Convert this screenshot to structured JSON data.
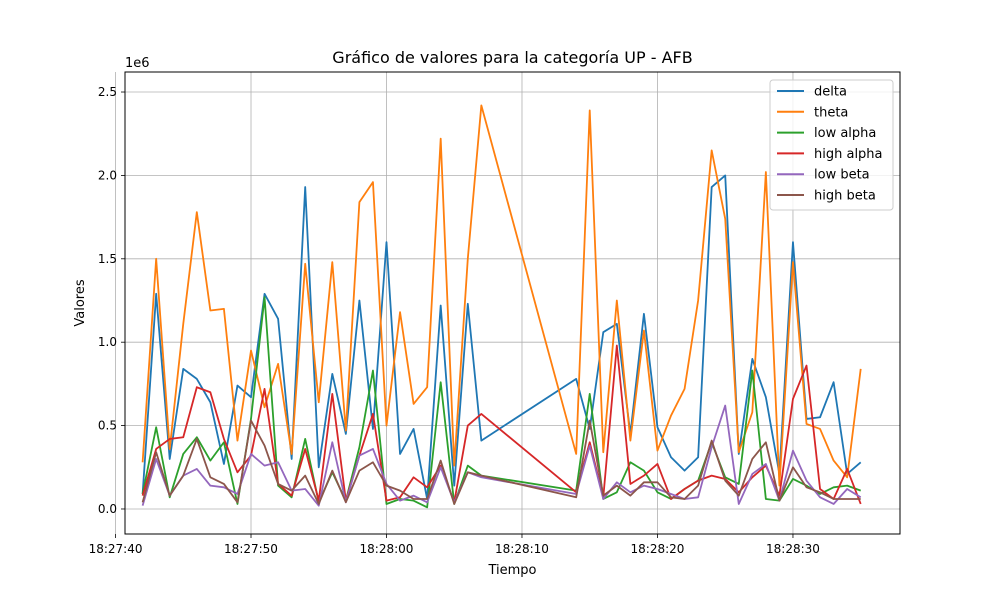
{
  "chart_data": {
    "type": "line",
    "title": "Gráfico de valores para la categoría UP - AFB",
    "xlabel": "Tiempo",
    "ylabel": "Valores",
    "y_offset_label": "1e6",
    "y_scale": 1000000,
    "grid": true,
    "legend_position": "top-right",
    "xlim": [
      "18:27:40.7",
      "18:28:37.9"
    ],
    "ylim": [
      -150000,
      2620000
    ],
    "x_ticks": [
      {
        "t": "18:27:40",
        "label": "18:27:40"
      },
      {
        "t": "18:27:50",
        "label": "18:27:50"
      },
      {
        "t": "18:28:00",
        "label": "18:28:00"
      },
      {
        "t": "18:28:10",
        "label": "18:28:10"
      },
      {
        "t": "18:28:20",
        "label": "18:28:20"
      },
      {
        "t": "18:28:30",
        "label": "18:28:30"
      }
    ],
    "y_ticks": [
      {
        "v": 0,
        "label": "0.0"
      },
      {
        "v": 500000,
        "label": "0.5"
      },
      {
        "v": 1000000,
        "label": "1.0"
      },
      {
        "v": 1500000,
        "label": "1.5"
      },
      {
        "v": 2000000,
        "label": "2.0"
      },
      {
        "v": 2500000,
        "label": "2.5"
      }
    ],
    "x": [
      "18:27:42",
      "18:27:43",
      "18:27:44",
      "18:27:45",
      "18:27:46",
      "18:27:47",
      "18:27:48",
      "18:27:49",
      "18:27:50",
      "18:27:51",
      "18:27:52",
      "18:27:53",
      "18:27:54",
      "18:27:55",
      "18:27:56",
      "18:27:57",
      "18:27:58",
      "18:27:59",
      "18:28:00",
      "18:28:01",
      "18:28:02",
      "18:28:03",
      "18:28:04",
      "18:28:05",
      "18:28:06",
      "18:28:07",
      "18:28:14",
      "18:28:15",
      "18:28:16",
      "18:28:17",
      "18:28:18",
      "18:28:19",
      "18:28:20",
      "18:28:21",
      "18:28:22",
      "18:28:23",
      "18:28:24",
      "18:28:25",
      "18:28:26",
      "18:28:27",
      "18:28:28",
      "18:28:29",
      "18:28:30",
      "18:28:31",
      "18:28:32",
      "18:28:33",
      "18:28:34",
      "18:28:35"
    ],
    "series": [
      {
        "name": "delta",
        "color": "#1f77b4",
        "values": [
          90000,
          1290000,
          300000,
          840000,
          780000,
          640000,
          270000,
          740000,
          670000,
          1290000,
          1140000,
          300000,
          1930000,
          250000,
          810000,
          450000,
          1250000,
          480000,
          1600000,
          330000,
          480000,
          60000,
          1220000,
          140000,
          1230000,
          410000,
          780000,
          480000,
          1060000,
          1110000,
          450000,
          1170000,
          490000,
          310000,
          230000,
          310000,
          1930000,
          2000000,
          330000,
          900000,
          670000,
          210000,
          1600000,
          540000,
          550000,
          760000,
          210000,
          280000
        ]
      },
      {
        "name": "theta",
        "color": "#ff7f0e",
        "values": [
          280000,
          1500000,
          360000,
          1110000,
          1780000,
          1190000,
          1200000,
          410000,
          950000,
          610000,
          870000,
          330000,
          1470000,
          640000,
          1480000,
          470000,
          1840000,
          1960000,
          500000,
          1180000,
          630000,
          730000,
          2220000,
          260000,
          1500000,
          2420000,
          330000,
          2390000,
          340000,
          1250000,
          410000,
          1070000,
          350000,
          560000,
          720000,
          1250000,
          2150000,
          1740000,
          340000,
          580000,
          2020000,
          140000,
          1480000,
          510000,
          480000,
          290000,
          190000,
          840000
        ]
      },
      {
        "name": "low alpha",
        "color": "#2ca02c",
        "values": [
          90000,
          490000,
          70000,
          330000,
          430000,
          290000,
          400000,
          30000,
          540000,
          1270000,
          140000,
          70000,
          420000,
          40000,
          220000,
          50000,
          370000,
          830000,
          30000,
          60000,
          50000,
          10000,
          760000,
          30000,
          260000,
          200000,
          110000,
          690000,
          60000,
          100000,
          280000,
          230000,
          100000,
          60000,
          120000,
          170000,
          400000,
          190000,
          150000,
          830000,
          60000,
          50000,
          180000,
          140000,
          90000,
          130000,
          140000,
          110000
        ]
      },
      {
        "name": "high alpha",
        "color": "#d62728",
        "values": [
          80000,
          360000,
          420000,
          430000,
          730000,
          700000,
          420000,
          220000,
          320000,
          720000,
          150000,
          80000,
          360000,
          50000,
          690000,
          50000,
          320000,
          570000,
          50000,
          70000,
          190000,
          130000,
          260000,
          40000,
          500000,
          570000,
          100000,
          400000,
          70000,
          980000,
          150000,
          200000,
          270000,
          60000,
          120000,
          170000,
          200000,
          180000,
          100000,
          190000,
          260000,
          80000,
          660000,
          860000,
          120000,
          60000,
          240000,
          30000
        ]
      },
      {
        "name": "low beta",
        "color": "#9467bd",
        "values": [
          20000,
          300000,
          80000,
          200000,
          240000,
          140000,
          130000,
          90000,
          330000,
          260000,
          280000,
          110000,
          120000,
          20000,
          400000,
          40000,
          320000,
          360000,
          150000,
          50000,
          80000,
          40000,
          250000,
          40000,
          220000,
          190000,
          90000,
          380000,
          60000,
          160000,
          100000,
          140000,
          120000,
          90000,
          60000,
          70000,
          370000,
          620000,
          30000,
          210000,
          270000,
          50000,
          350000,
          170000,
          70000,
          30000,
          120000,
          70000
        ]
      },
      {
        "name": "high beta",
        "color": "#8c564b",
        "values": [
          40000,
          340000,
          80000,
          200000,
          420000,
          190000,
          150000,
          40000,
          530000,
          380000,
          150000,
          110000,
          200000,
          30000,
          230000,
          40000,
          230000,
          280000,
          140000,
          110000,
          60000,
          60000,
          290000,
          30000,
          220000,
          200000,
          70000,
          530000,
          80000,
          140000,
          80000,
          160000,
          160000,
          70000,
          60000,
          140000,
          410000,
          170000,
          80000,
          300000,
          400000,
          50000,
          250000,
          130000,
          100000,
          60000,
          60000,
          60000
        ]
      }
    ]
  }
}
